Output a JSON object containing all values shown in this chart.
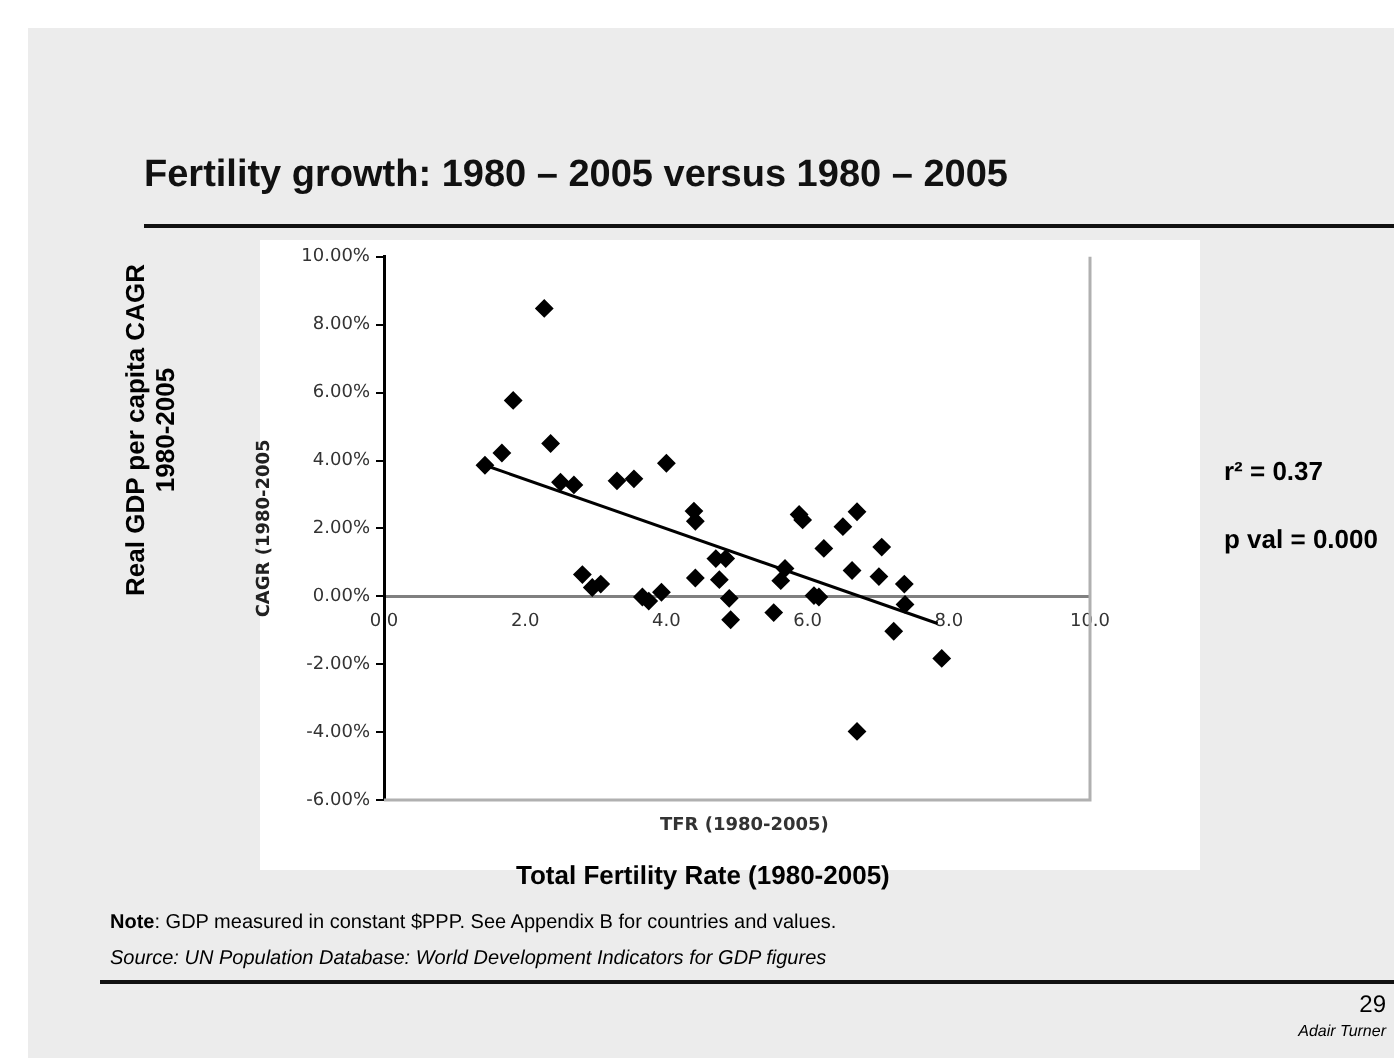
{
  "chart_data": {
    "type": "scatter",
    "title": "Fertility growth: 1980 – 2005 versus 1980 – 2005",
    "xlabel": "TFR (1980-2005)",
    "ylabel": "CAGR (1980-2005",
    "xlim": [
      0,
      10
    ],
    "ylim": [
      -6,
      10
    ],
    "xticks": [
      {
        "value": 0,
        "label": "0.0"
      },
      {
        "value": 2,
        "label": "2.0"
      },
      {
        "value": 4,
        "label": "4.0"
      },
      {
        "value": 6,
        "label": "6.0"
      },
      {
        "value": 8,
        "label": "8.0"
      },
      {
        "value": 10,
        "label": "10.0"
      }
    ],
    "yticks": [
      {
        "value": -6,
        "label": "-6.00%"
      },
      {
        "value": -4,
        "label": "-4.00%"
      },
      {
        "value": -2,
        "label": "-2.00%"
      },
      {
        "value": 0,
        "label": "0.00%"
      },
      {
        "value": 2,
        "label": "2.00%"
      },
      {
        "value": 4,
        "label": "4.00%"
      },
      {
        "value": 6,
        "label": "6.00%"
      },
      {
        "value": 8,
        "label": "8.00%"
      },
      {
        "value": 10,
        "label": "10.00%"
      }
    ],
    "grid": false,
    "legend": false,
    "marker": "diamond",
    "series": [
      {
        "type": "scatter",
        "color": "#000000",
        "x": [
          1.43,
          1.67,
          1.83,
          2.27,
          2.36,
          2.5,
          2.69,
          2.81,
          2.95,
          3.07,
          3.3,
          3.54,
          3.66,
          3.75,
          3.93,
          4.0,
          4.39,
          4.41,
          4.41,
          4.7,
          4.75,
          4.84,
          4.89,
          4.91,
          5.52,
          5.62,
          5.68,
          5.88,
          5.93,
          6.09,
          6.16,
          6.23,
          6.5,
          6.63,
          6.7,
          6.7,
          7.01,
          7.05,
          7.22,
          7.37,
          7.38,
          7.9
        ],
        "values": [
          3.86,
          4.22,
          5.77,
          8.48,
          4.5,
          3.36,
          3.28,
          0.64,
          0.26,
          0.36,
          3.4,
          3.46,
          -0.02,
          -0.14,
          0.12,
          3.92,
          2.51,
          2.21,
          0.54,
          1.11,
          0.49,
          1.11,
          -0.06,
          -0.69,
          -0.48,
          0.46,
          0.82,
          2.41,
          2.25,
          0.02,
          -0.02,
          1.41,
          2.05,
          0.76,
          2.49,
          -3.98,
          0.58,
          1.45,
          -1.03,
          0.36,
          -0.24,
          -1.83
        ]
      },
      {
        "type": "line",
        "color": "#000000",
        "x": [
          1.43,
          7.84
        ],
        "values": [
          3.86,
          -0.8
        ],
        "line_style": "solid",
        "marker": "none"
      }
    ],
    "annotations": [
      "Real GDP per capita  CAGR 1980-2005",
      "Total Fertility Rate (1980-2005)",
      "r² = 0.37",
      "p val = 0.000",
      "Note: GDP measured in constant $PPP.  See Appendix B for countries and values.",
      "Source: UN Population Database: World Development Indicators for GDP figures",
      "29",
      "Adair Turner"
    ]
  }
}
